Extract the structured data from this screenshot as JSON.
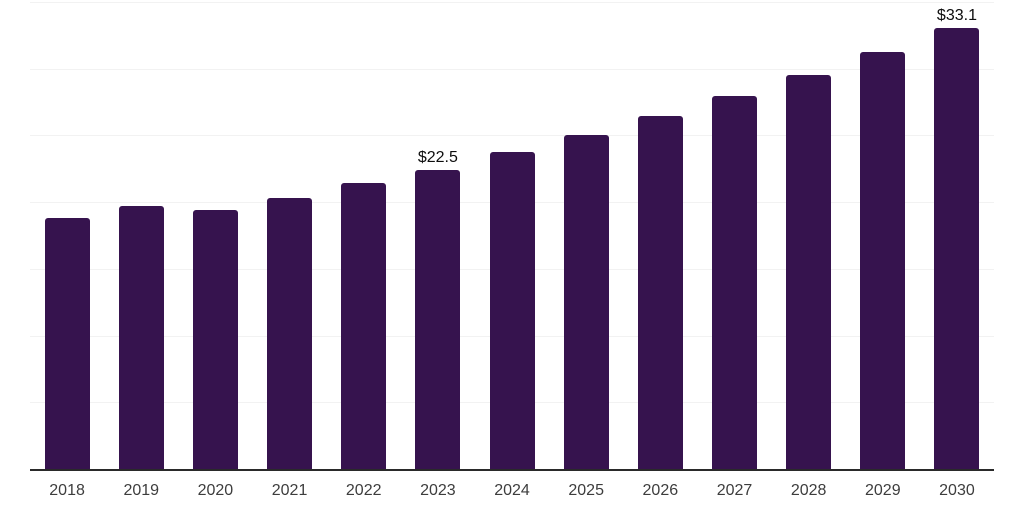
{
  "chart_data": {
    "type": "bar",
    "title": "",
    "xlabel": "",
    "ylabel": "",
    "categories": [
      "2018",
      "2019",
      "2020",
      "2021",
      "2022",
      "2023",
      "2024",
      "2025",
      "2026",
      "2027",
      "2028",
      "2029",
      "2030"
    ],
    "values": [
      18.9,
      19.8,
      19.5,
      20.4,
      21.5,
      22.5,
      23.8,
      25.1,
      26.5,
      28.0,
      29.6,
      31.3,
      33.1
    ],
    "data_labels": [
      "",
      "",
      "",
      "",
      "",
      "$22.5",
      "",
      "",
      "",
      "",
      "",
      "",
      "$33.1"
    ],
    "ylim": [
      0,
      35
    ],
    "grid_step": 5,
    "grid": true,
    "legend_position": "none",
    "colors": {
      "bar": "#36134e",
      "gridline": "#f2f2f2",
      "axis_line": "#2a2a2a",
      "tick_label": "#3d3d3d",
      "value_label": "#0d0d0d",
      "background": "#ffffff"
    }
  }
}
